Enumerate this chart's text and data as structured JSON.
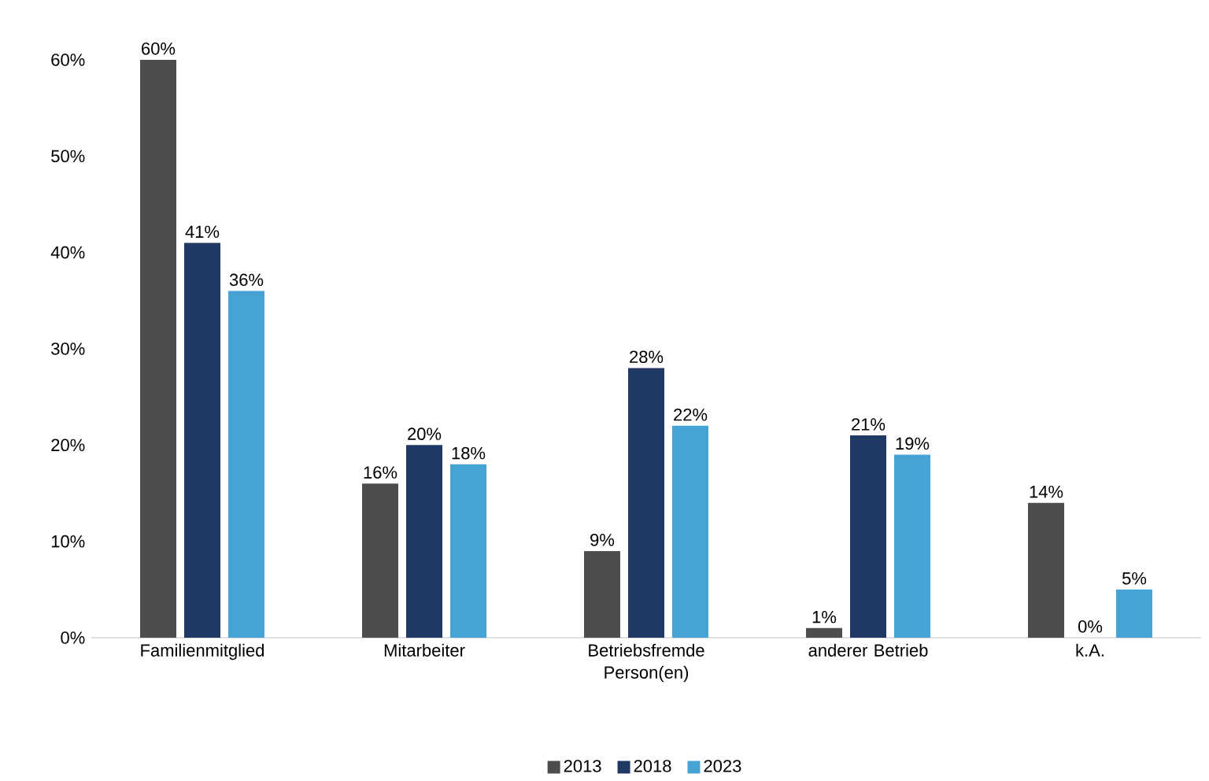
{
  "chart_data": {
    "type": "bar",
    "categories": [
      "Familienmitglied",
      "Mitarbeiter",
      "Betriebsfremde Person(en)",
      "anderer Betrieb",
      "k.A."
    ],
    "series": [
      {
        "name": "2013",
        "color": "#4d4d4d",
        "values": [
          60,
          16,
          9,
          1,
          14
        ],
        "value_labels": [
          "60%",
          "16%",
          "9%",
          "1%",
          "14%"
        ]
      },
      {
        "name": "2018",
        "color": "#203864",
        "values": [
          41,
          20,
          28,
          21,
          0
        ],
        "value_labels": [
          "41%",
          "20%",
          "28%",
          "21%",
          "0%"
        ]
      },
      {
        "name": "2023",
        "color": "#46a3d3",
        "values": [
          36,
          18,
          22,
          19,
          5
        ],
        "value_labels": [
          "36%",
          "18%",
          "22%",
          "19%",
          "5%"
        ]
      }
    ],
    "ylim": [
      0,
      60
    ],
    "yticks": [
      {
        "value": 0,
        "label": "0%"
      },
      {
        "value": 10,
        "label": "10%"
      },
      {
        "value": 20,
        "label": "20%"
      },
      {
        "value": 30,
        "label": "30%"
      },
      {
        "value": 40,
        "label": "40%"
      },
      {
        "value": 50,
        "label": "50%"
      },
      {
        "value": 60,
        "label": "60%"
      }
    ],
    "legend": "bottom"
  }
}
